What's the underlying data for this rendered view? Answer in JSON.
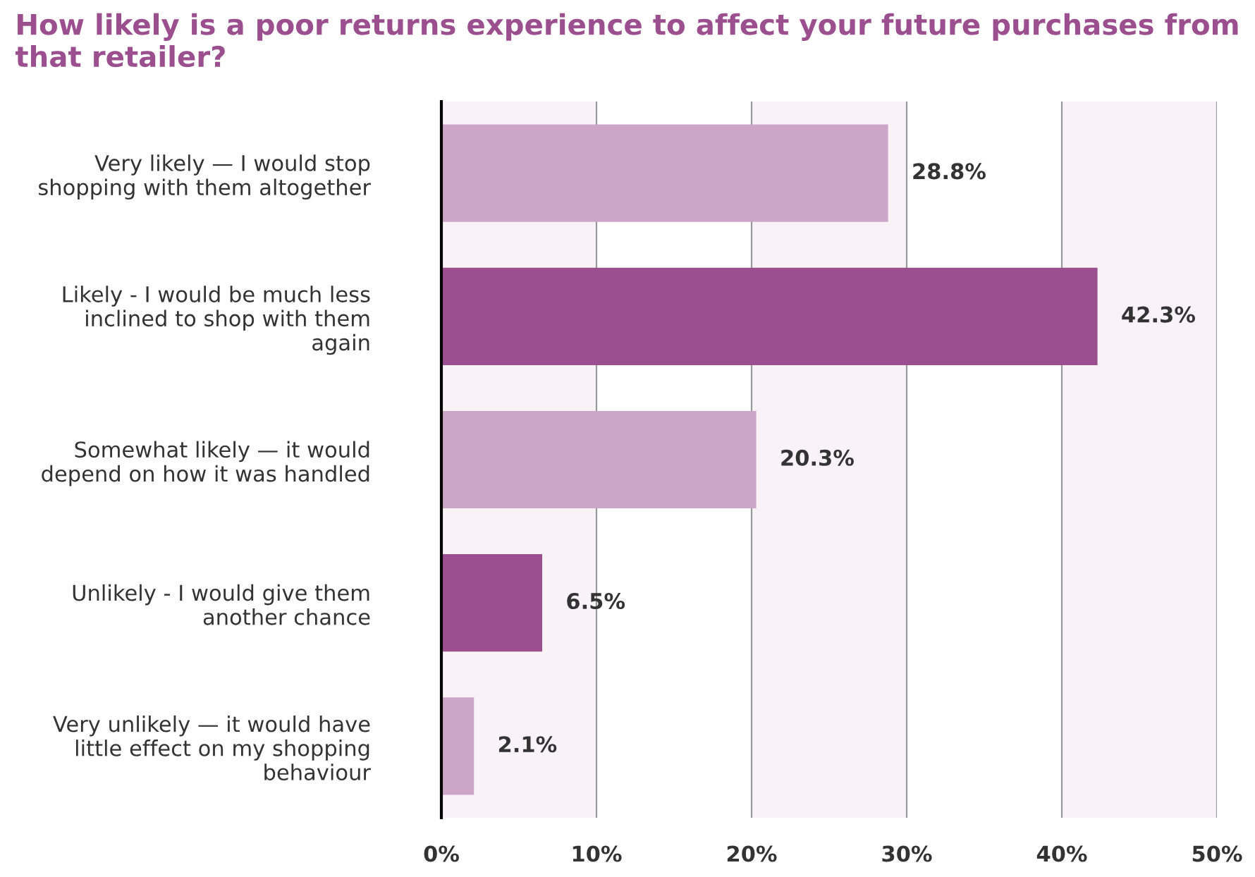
{
  "chart_data": {
    "type": "bar",
    "orientation": "horizontal",
    "title": "How likely is a poor returns experience to affect your future purchases from that retailer?",
    "categories": [
      "Very likely — I would stop\nshopping with them altogether",
      "Likely - I would be much less\ninclined to shop with them\nagain",
      "Somewhat likely — it would\ndepend on how it was handled",
      "Unlikely - I would give them\nanother chance",
      "Very unlikely — it would have\nlittle effect on my shopping\nbehaviour"
    ],
    "values": [
      28.8,
      42.3,
      20.3,
      6.5,
      2.1
    ],
    "colors": [
      "#cda5c9",
      "#9b4f8f",
      "#cda5c9",
      "#9b4f8f",
      "#cda5c9"
    ],
    "value_labels": [
      "28.8%",
      "42.3%",
      "20.3%",
      "6.5%",
      "2.1%"
    ],
    "xlim": [
      0,
      50
    ],
    "xticks": [
      {
        "value": 0,
        "label": "0%"
      },
      {
        "value": 10,
        "label": "10%"
      },
      {
        "value": 20,
        "label": "20%"
      },
      {
        "value": 30,
        "label": "30%"
      },
      {
        "value": 40,
        "label": "40%"
      },
      {
        "value": 50,
        "label": "50%"
      }
    ],
    "bands": [
      {
        "axis": "x",
        "from": 0,
        "to": 10,
        "color": "#f9f3f7"
      },
      {
        "axis": "x",
        "from": 20,
        "to": 30,
        "color": "#f9f3f7"
      },
      {
        "axis": "x",
        "from": 40,
        "to": 50,
        "color": "#f9f3f7"
      }
    ],
    "grid": "x",
    "legend": false
  }
}
